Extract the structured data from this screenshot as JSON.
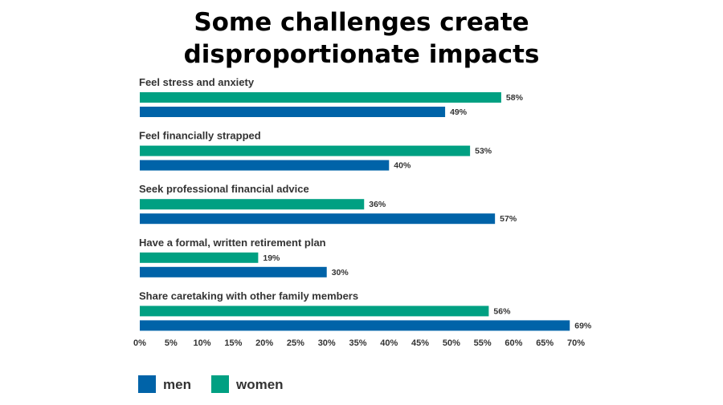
{
  "chart_data": {
    "type": "bar",
    "orientation": "horizontal",
    "title": "Some challenges create disproportionate impacts",
    "title_lines": [
      "Some challenges create",
      "disproportionate impacts"
    ],
    "categories": [
      "Feel stress and anxiety",
      "Feel financially strapped",
      "Seek professional financial advice",
      "Have a formal, written retirement plan",
      "Share caretaking with other family members"
    ],
    "series": [
      {
        "name": "women",
        "color": "#00a082",
        "values": [
          58,
          53,
          36,
          19,
          56
        ],
        "labels": [
          "58%",
          "53%",
          "36%",
          "19%",
          "56%"
        ]
      },
      {
        "name": "men",
        "color": "#0063a8",
        "values": [
          49,
          40,
          57,
          30,
          69
        ],
        "labels": [
          "49%",
          "40%",
          "57%",
          "30%",
          "69%"
        ]
      }
    ],
    "xlim": [
      0,
      70
    ],
    "ticks": [
      0,
      5,
      10,
      15,
      20,
      25,
      30,
      35,
      40,
      45,
      50,
      55,
      60,
      65,
      70
    ],
    "tick_labels": [
      "0%",
      "5%",
      "10%",
      "15%",
      "20%",
      "25%",
      "30%",
      "35%",
      "40%",
      "45%",
      "50%",
      "55%",
      "60%",
      "65%",
      "70%"
    ],
    "grid": false,
    "legend": {
      "placement": "bottom-left",
      "items": [
        {
          "name": "men",
          "color": "#0063a8"
        },
        {
          "name": "women",
          "color": "#00a082"
        }
      ]
    }
  }
}
